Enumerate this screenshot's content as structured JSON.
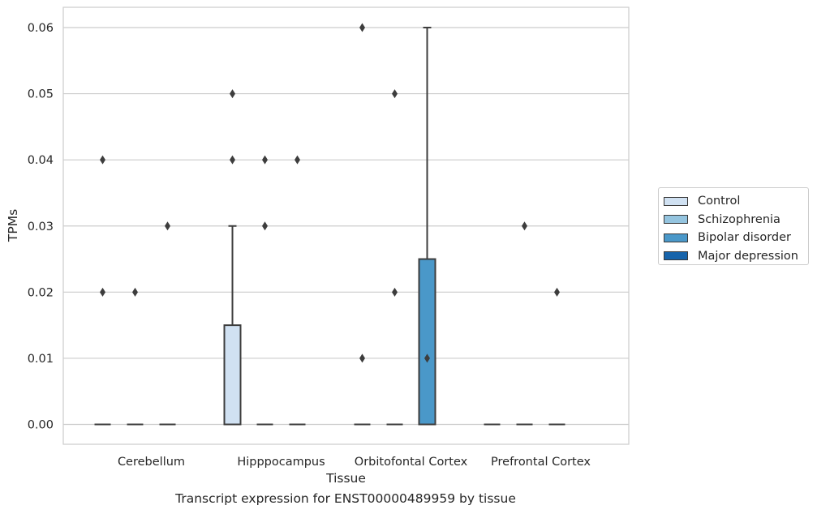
{
  "chart_data": {
    "type": "box",
    "xlabel": "Tissue",
    "ylabel": "TPMs",
    "ylim": [
      -0.003,
      0.063
    ],
    "yticks": [
      "0.00",
      "0.01",
      "0.02",
      "0.03",
      "0.04",
      "0.05",
      "0.06"
    ],
    "ytick_values": [
      0,
      0.01,
      0.02,
      0.03,
      0.04,
      0.05,
      0.06
    ],
    "categories": [
      "Cerebellum",
      "Hipppocampus",
      "Orbitofontal Cortex",
      "Prefrontal Cortex"
    ],
    "grid": "horizontal",
    "legend_position": "right",
    "series": [
      {
        "name": "Control",
        "color": "#d0e1f2",
        "boxes": [
          {
            "category": "Cerebellum",
            "q1": 0,
            "median": 0,
            "q3": 0,
            "whisker_low": 0,
            "whisker_high": 0,
            "outliers": [
              0.04,
              0.02
            ]
          },
          {
            "category": "Hipppocampus",
            "q1": 0,
            "median": 0,
            "q3": 0.015,
            "whisker_low": 0,
            "whisker_high": 0.03,
            "outliers": [
              0.05,
              0.04
            ]
          },
          {
            "category": "Orbitofontal Cortex",
            "q1": 0,
            "median": 0,
            "q3": 0,
            "whisker_low": 0,
            "whisker_high": 0,
            "outliers": [
              0.06,
              0.01
            ]
          },
          {
            "category": "Prefrontal Cortex",
            "q1": 0,
            "median": 0,
            "q3": 0,
            "whisker_low": 0,
            "whisker_high": 0,
            "outliers": []
          }
        ]
      },
      {
        "name": "Schizophrenia",
        "color": "#94c4df",
        "boxes": [
          {
            "category": "Cerebellum",
            "q1": 0,
            "median": 0,
            "q3": 0,
            "whisker_low": 0,
            "whisker_high": 0,
            "outliers": [
              0.02
            ]
          },
          {
            "category": "Hipppocampus",
            "q1": 0,
            "median": 0,
            "q3": 0,
            "whisker_low": 0,
            "whisker_high": 0,
            "outliers": [
              0.04,
              0.03
            ]
          },
          {
            "category": "Orbitofontal Cortex",
            "q1": 0,
            "median": 0,
            "q3": 0,
            "whisker_low": 0,
            "whisker_high": 0,
            "outliers": [
              0.05,
              0.02
            ]
          },
          {
            "category": "Prefrontal Cortex",
            "q1": 0,
            "median": 0,
            "q3": 0,
            "whisker_low": 0,
            "whisker_high": 0,
            "outliers": [
              0.03
            ]
          }
        ]
      },
      {
        "name": "Bipolar disorder",
        "color": "#4a98c9",
        "boxes": [
          {
            "category": "Cerebellum",
            "q1": 0,
            "median": 0,
            "q3": 0,
            "whisker_low": 0,
            "whisker_high": 0,
            "outliers": [
              0.03
            ]
          },
          {
            "category": "Hipppocampus",
            "q1": 0,
            "median": 0,
            "q3": 0,
            "whisker_low": 0,
            "whisker_high": 0,
            "outliers": [
              0.04
            ]
          },
          {
            "category": "Orbitofontal Cortex",
            "q1": 0,
            "median": 0,
            "q3": 0.025,
            "whisker_low": 0,
            "whisker_high": 0.06,
            "outliers": [
              0.01
            ]
          },
          {
            "category": "Prefrontal Cortex",
            "q1": 0,
            "median": 0,
            "q3": 0,
            "whisker_low": 0,
            "whisker_high": 0,
            "outliers": [
              0.02
            ]
          }
        ]
      },
      {
        "name": "Major depression",
        "color": "#1764ab",
        "boxes": []
      }
    ]
  },
  "caption": "Transcript expression for ENST00000489959 by tissue"
}
